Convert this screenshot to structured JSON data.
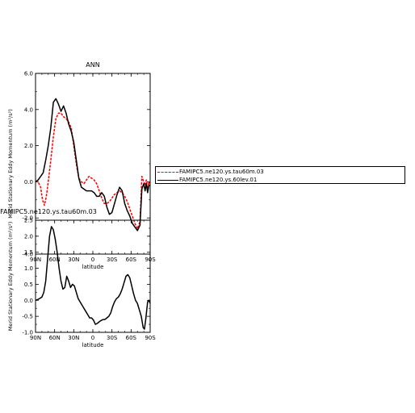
{
  "chart_data": [
    {
      "type": "line",
      "title": "ANN",
      "xlabel": "latitude",
      "ylabel": "Merid Stationary Eddy Momentum (m²/s²)",
      "xlim": [
        90,
        -90
      ],
      "ylim": [
        -4.0,
        6.0
      ],
      "xticks": [
        {
          "v": 90,
          "label": "90N"
        },
        {
          "v": 60,
          "label": "60N"
        },
        {
          "v": 30,
          "label": "30N"
        },
        {
          "v": 0,
          "label": "0"
        },
        {
          "v": -30,
          "label": "30S"
        },
        {
          "v": -60,
          "label": "60S"
        },
        {
          "v": -90,
          "label": "90S"
        }
      ],
      "yticks": [
        {
          "v": 6,
          "label": "6.0"
        },
        {
          "v": 4,
          "label": "4.0"
        },
        {
          "v": 2,
          "label": "2.0"
        },
        {
          "v": 0,
          "label": "0.0"
        },
        {
          "v": -2,
          "label": "-2.0"
        },
        {
          "v": -4,
          "label": "-4.0"
        }
      ],
      "series": [
        {
          "name": "FAMIPC5.ne120.ys.tau60m.03",
          "color": "#ff0000",
          "dash": true,
          "x": [
            90,
            86,
            82,
            79,
            76,
            73,
            70,
            66,
            62,
            58,
            54,
            50,
            46,
            42,
            38,
            34,
            30,
            26,
            22,
            18,
            14,
            10,
            6,
            2,
            -2,
            -6,
            -10,
            -14,
            -18,
            -22,
            -26,
            -30,
            -34,
            -38,
            -42,
            -46,
            -50,
            -54,
            -58,
            -62,
            -66,
            -70,
            -74,
            -77,
            -80,
            -82,
            -84,
            -86,
            -88,
            -90
          ],
          "y": [
            0.0,
            0.0,
            -0.3,
            -1.0,
            -1.3,
            -0.8,
            0.0,
            1.2,
            2.5,
            3.5,
            3.8,
            3.8,
            3.6,
            3.5,
            3.3,
            3.0,
            2.0,
            1.0,
            0.2,
            0.0,
            -0.1,
            0.1,
            0.3,
            0.2,
            0.1,
            -0.1,
            -0.5,
            -0.9,
            -1.2,
            -1.2,
            -1.1,
            -0.9,
            -0.7,
            -0.6,
            -0.5,
            -0.6,
            -0.8,
            -1.1,
            -1.5,
            -1.9,
            -2.3,
            -2.6,
            -2.2,
            0.3,
            0.0,
            -0.2,
            0.1,
            -0.4,
            0.0,
            -0.2
          ]
        },
        {
          "name": "FAMIPC5.ne120.ys.60lev.01",
          "color": "#000000",
          "dash": false,
          "x": [
            90,
            86,
            82,
            78,
            74,
            70,
            66,
            62,
            58,
            54,
            50,
            46,
            42,
            38,
            34,
            30,
            26,
            22,
            18,
            14,
            10,
            6,
            2,
            -2,
            -6,
            -10,
            -14,
            -18,
            -22,
            -26,
            -30,
            -34,
            -38,
            -42,
            -46,
            -50,
            -54,
            -58,
            -62,
            -66,
            -70,
            -74,
            -77,
            -80,
            -82,
            -84,
            -86,
            -88,
            -90
          ],
          "y": [
            0.0,
            0.1,
            0.3,
            0.5,
            1.2,
            2.0,
            3.0,
            4.4,
            4.6,
            4.3,
            3.9,
            4.2,
            3.8,
            3.2,
            2.8,
            2.2,
            1.2,
            0.2,
            -0.3,
            -0.4,
            -0.5,
            -0.5,
            -0.5,
            -0.6,
            -0.8,
            -0.8,
            -0.6,
            -0.8,
            -1.4,
            -1.8,
            -1.7,
            -1.2,
            -0.7,
            -0.3,
            -0.5,
            -1.2,
            -1.6,
            -1.9,
            -2.3,
            -2.5,
            -2.7,
            -2.4,
            -0.4,
            -0.1,
            -0.5,
            -0.1,
            -0.6,
            -0.2,
            -0.2
          ]
        }
      ]
    },
    {
      "type": "line",
      "title": "FAMIPC5.ne120.ys.tau60m.03",
      "xlabel": "latitude",
      "ylabel": "Merid Stationary Eddy Momentum (m²/s²)",
      "xlim": [
        90,
        -90
      ],
      "ylim": [
        -1.0,
        2.5
      ],
      "xticks": [
        {
          "v": 90,
          "label": "90N"
        },
        {
          "v": 60,
          "label": "60N"
        },
        {
          "v": 30,
          "label": "30N"
        },
        {
          "v": 0,
          "label": "0"
        },
        {
          "v": -30,
          "label": "30S"
        },
        {
          "v": -60,
          "label": "60S"
        },
        {
          "v": -90,
          "label": "90S"
        }
      ],
      "yticks": [
        {
          "v": 2.5,
          "label": "2.5"
        },
        {
          "v": 2.0,
          "label": "2.0"
        },
        {
          "v": 1.5,
          "label": "1.5"
        },
        {
          "v": 1.0,
          "label": "1.0"
        },
        {
          "v": 0.5,
          "label": "0.5"
        },
        {
          "v": 0.0,
          "label": "0.0"
        },
        {
          "v": -0.5,
          "label": "-0.5"
        },
        {
          "v": -1.0,
          "label": "-1.0"
        }
      ],
      "series": [
        {
          "color": "#000000",
          "dash": false,
          "x": [
            90,
            87,
            84,
            80,
            77,
            74,
            71,
            68,
            65,
            62,
            59,
            56,
            53,
            50,
            47,
            44,
            41,
            38,
            35,
            32,
            29,
            26,
            23,
            20,
            17,
            14,
            11,
            8,
            5,
            2,
            -1,
            -4,
            -7,
            -10,
            -13,
            -16,
            -19,
            -22,
            -25,
            -28,
            -31,
            -34,
            -37,
            -40,
            -43,
            -46,
            -49,
            -52,
            -55,
            -58,
            -61,
            -64,
            -67,
            -70,
            -73,
            -76,
            -79,
            -81,
            -83,
            -86,
            -88,
            -90
          ],
          "y": [
            0.0,
            0.02,
            0.05,
            0.1,
            0.25,
            0.6,
            1.3,
            2.0,
            2.3,
            2.2,
            1.9,
            1.5,
            1.0,
            0.6,
            0.35,
            0.4,
            0.75,
            0.6,
            0.4,
            0.5,
            0.45,
            0.25,
            0.05,
            -0.05,
            -0.15,
            -0.25,
            -0.35,
            -0.45,
            -0.55,
            -0.55,
            -0.62,
            -0.75,
            -0.72,
            -0.67,
            -0.63,
            -0.6,
            -0.6,
            -0.55,
            -0.5,
            -0.4,
            -0.2,
            -0.05,
            0.05,
            0.1,
            0.2,
            0.35,
            0.55,
            0.75,
            0.8,
            0.7,
            0.45,
            0.2,
            0.0,
            -0.1,
            -0.3,
            -0.5,
            -0.85,
            -0.9,
            -0.6,
            -0.05,
            0.0,
            -0.1
          ]
        }
      ]
    }
  ],
  "legend": {
    "entries": [
      {
        "label": "FAMIPC5.ne120.ys.tau60m.03",
        "color": "#ff0000",
        "dash": true
      },
      {
        "label": "FAMIPC5.ne120.ys.60lev.01",
        "color": "#000000",
        "dash": false
      }
    ]
  }
}
